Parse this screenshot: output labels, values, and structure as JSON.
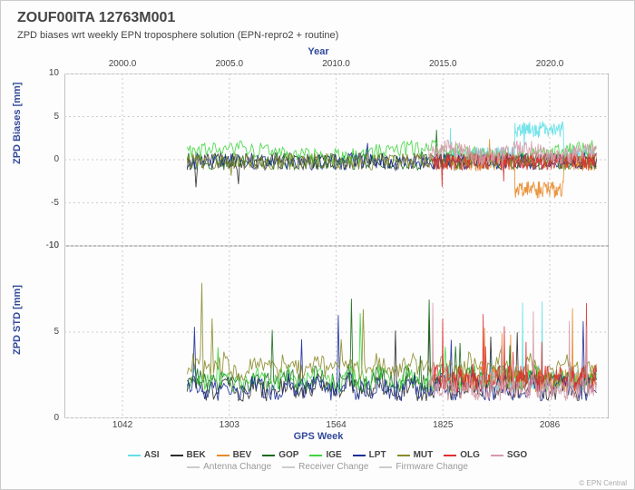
{
  "title": "ZOUF00ITA 12763M001",
  "subtitle": "ZPD biases wrt weekly EPN troposphere solution (EPN-repro2 + routine)",
  "top_axis": {
    "label": "Year",
    "ticks": [
      2000.0,
      2005.0,
      2010.0,
      2015.0,
      2020.0
    ]
  },
  "bottom_axis": {
    "label": "GPS Week",
    "ticks": [
      1042,
      1303,
      1564,
      1825,
      2086
    ],
    "min": 900,
    "max": 2230
  },
  "panels": [
    {
      "ylabel": "ZPD Biases [mm]",
      "ymin": -10,
      "ymax": 10,
      "yticks": [
        -10,
        -5,
        0,
        5,
        10
      ]
    },
    {
      "ylabel": "ZPD STD [mm]",
      "ymin": 0,
      "ymax": 10,
      "yticks": [
        0,
        5,
        10
      ]
    }
  ],
  "series": [
    {
      "name": "ASI",
      "color": "#63e0e8",
      "xstart": 1830,
      "biases_pattern": "high",
      "std_pattern": "med"
    },
    {
      "name": "BEK",
      "color": "#2c2c2c",
      "xstart": 1200,
      "biases_pattern": "low",
      "std_pattern": "low"
    },
    {
      "name": "BEV",
      "color": "#e88a2a",
      "xstart": 1830,
      "biases_pattern": "neg",
      "std_pattern": "med"
    },
    {
      "name": "GOP",
      "color": "#1a6b1a",
      "xstart": 1200,
      "biases_pattern": "low",
      "std_pattern": "med"
    },
    {
      "name": "IGE",
      "color": "#3fd63f",
      "xstart": 1200,
      "biases_pattern": "pos",
      "std_pattern": "med"
    },
    {
      "name": "LPT",
      "color": "#1a2e99",
      "xstart": 1200,
      "biases_pattern": "low",
      "std_pattern": "low"
    },
    {
      "name": "MUT",
      "color": "#8a8a2a",
      "xstart": 1200,
      "biases_pattern": "low",
      "std_pattern": "high"
    },
    {
      "name": "OLG",
      "color": "#e03030",
      "xstart": 1800,
      "biases_pattern": "low",
      "std_pattern": "med"
    },
    {
      "name": "SGO",
      "color": "#d49aa8",
      "xstart": 1790,
      "biases_pattern": "pos",
      "std_pattern": "low"
    }
  ],
  "changes": [
    {
      "name": "Antenna Change",
      "color": "#cccccc"
    },
    {
      "name": "Receiver Change",
      "color": "#cccccc"
    },
    {
      "name": "Firmware Change",
      "color": "#cccccc"
    }
  ],
  "footer": "© EPN Central",
  "style": {
    "background": "#fdfdfd",
    "grid_color": "#ccc",
    "border_color": "#888",
    "text_color": "#444",
    "axis_label_color": "#334a9a",
    "title_fontsize": 16,
    "subtitle_fontsize": 11,
    "tick_fontsize": 10,
    "legend_fontsize": 10
  }
}
